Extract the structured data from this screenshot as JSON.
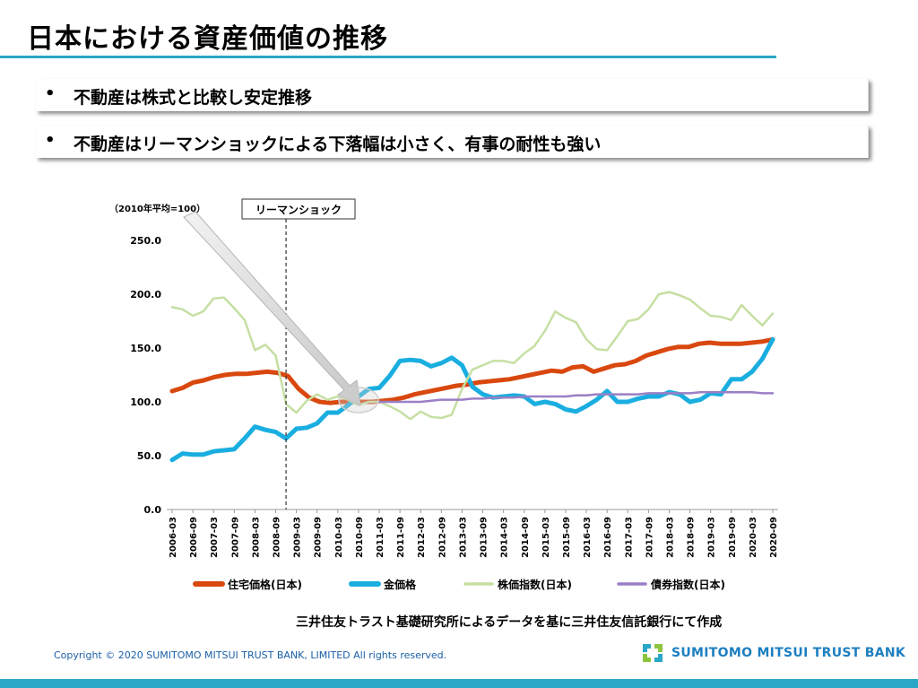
{
  "page": {
    "title": "日本における資産価値の推移",
    "bullets": [
      "不動産は株式と比較し安定推移",
      "不動産はリーマンショックによる下落幅は小さく、有事の耐性も強い"
    ],
    "bullet_char": "•",
    "source_note": "三井住友トラスト基礎研究所によるデータを基に三井住友信託銀行にて作成",
    "copyright": "Copyright © 2020 SUMITOMO MITSUI TRUST BANK, LIMITED All rights reserved.",
    "logo_text": "SUMITOMO MITSUI TRUST BANK",
    "accent_color": "#2aa6c6"
  },
  "chart_data": {
    "type": "line",
    "base_note": "（2010年平均=100）",
    "event_label": "リーマンショック",
    "event_at": "2008-09",
    "ylim": [
      0,
      250
    ],
    "yticks": [
      "0.0",
      "50.0",
      "100.0",
      "150.0",
      "200.0",
      "250.0"
    ],
    "x_labels": [
      "2006-03",
      "2006-09",
      "2007-03",
      "2007-09",
      "2008-03",
      "2008-09",
      "2009-03",
      "2009-09",
      "2010-03",
      "2010-09",
      "2011-03",
      "2011-09",
      "2012-03",
      "2012-09",
      "2013-03",
      "2013-09",
      "2014-03",
      "2014-09",
      "2015-03",
      "2015-09",
      "2016-03",
      "2016-09",
      "2017-03",
      "2017-09",
      "2018-03",
      "2018-09",
      "2019-03",
      "2019-09",
      "2020-03",
      "2020-09"
    ],
    "series": [
      {
        "name": "住宅価格(日本)",
        "color": "#d9480f",
        "width": 5,
        "values": [
          110,
          113,
          118,
          120,
          123,
          125,
          126,
          126,
          127,
          128,
          127,
          124,
          112,
          104,
          100,
          99,
          100,
          100,
          100,
          100,
          101,
          102,
          104,
          107,
          109,
          111,
          113,
          115,
          116,
          118,
          119,
          120,
          121,
          123,
          125,
          127,
          129,
          128,
          132,
          133,
          128,
          131,
          134,
          135,
          138,
          143,
          146,
          149,
          151,
          151,
          154,
          155,
          154,
          154,
          154,
          155,
          156,
          158
        ]
      },
      {
        "name": "金価格",
        "color": "#1aaee0",
        "width": 5,
        "values": [
          46,
          52,
          51,
          51,
          54,
          55,
          56,
          66,
          77,
          74,
          72,
          66,
          75,
          76,
          80,
          90,
          90,
          97,
          105,
          112,
          113,
          124,
          138,
          139,
          138,
          133,
          136,
          141,
          134,
          114,
          107,
          104,
          105,
          106,
          105,
          98,
          100,
          98,
          93,
          91,
          96,
          102,
          110,
          100,
          100,
          103,
          105,
          105,
          109,
          107,
          100,
          102,
          108,
          107,
          121,
          121,
          128,
          140,
          158
        ]
      },
      {
        "name": "株価指数(日本)",
        "color": "#c6dfa3",
        "width": 2.5,
        "values": [
          188,
          186,
          180,
          184,
          196,
          197,
          187,
          176,
          148,
          153,
          143,
          98,
          90,
          101,
          107,
          102,
          105,
          102,
          97,
          100,
          100,
          96,
          91,
          84,
          91,
          86,
          85,
          88,
          112,
          130,
          134,
          138,
          138,
          136,
          145,
          152,
          166,
          184,
          178,
          174,
          158,
          149,
          148,
          161,
          175,
          177,
          186,
          200,
          202,
          199,
          195,
          187,
          180,
          179,
          176,
          190,
          180,
          171,
          182
        ]
      },
      {
        "name": "債券指数(日本)",
        "color": "#9b7fc6",
        "width": 2.5,
        "values": [
          null,
          null,
          null,
          null,
          null,
          null,
          null,
          null,
          null,
          null,
          null,
          null,
          null,
          null,
          null,
          null,
          null,
          null,
          null,
          null,
          100,
          100,
          100,
          100,
          100,
          101,
          102,
          102,
          102,
          103,
          103,
          104,
          104,
          104,
          105,
          105,
          105,
          105,
          105,
          106,
          106,
          107,
          107,
          107,
          107,
          107,
          108,
          108,
          108,
          108,
          108,
          109,
          109,
          109,
          109,
          109,
          109,
          108,
          108
        ]
      }
    ]
  }
}
